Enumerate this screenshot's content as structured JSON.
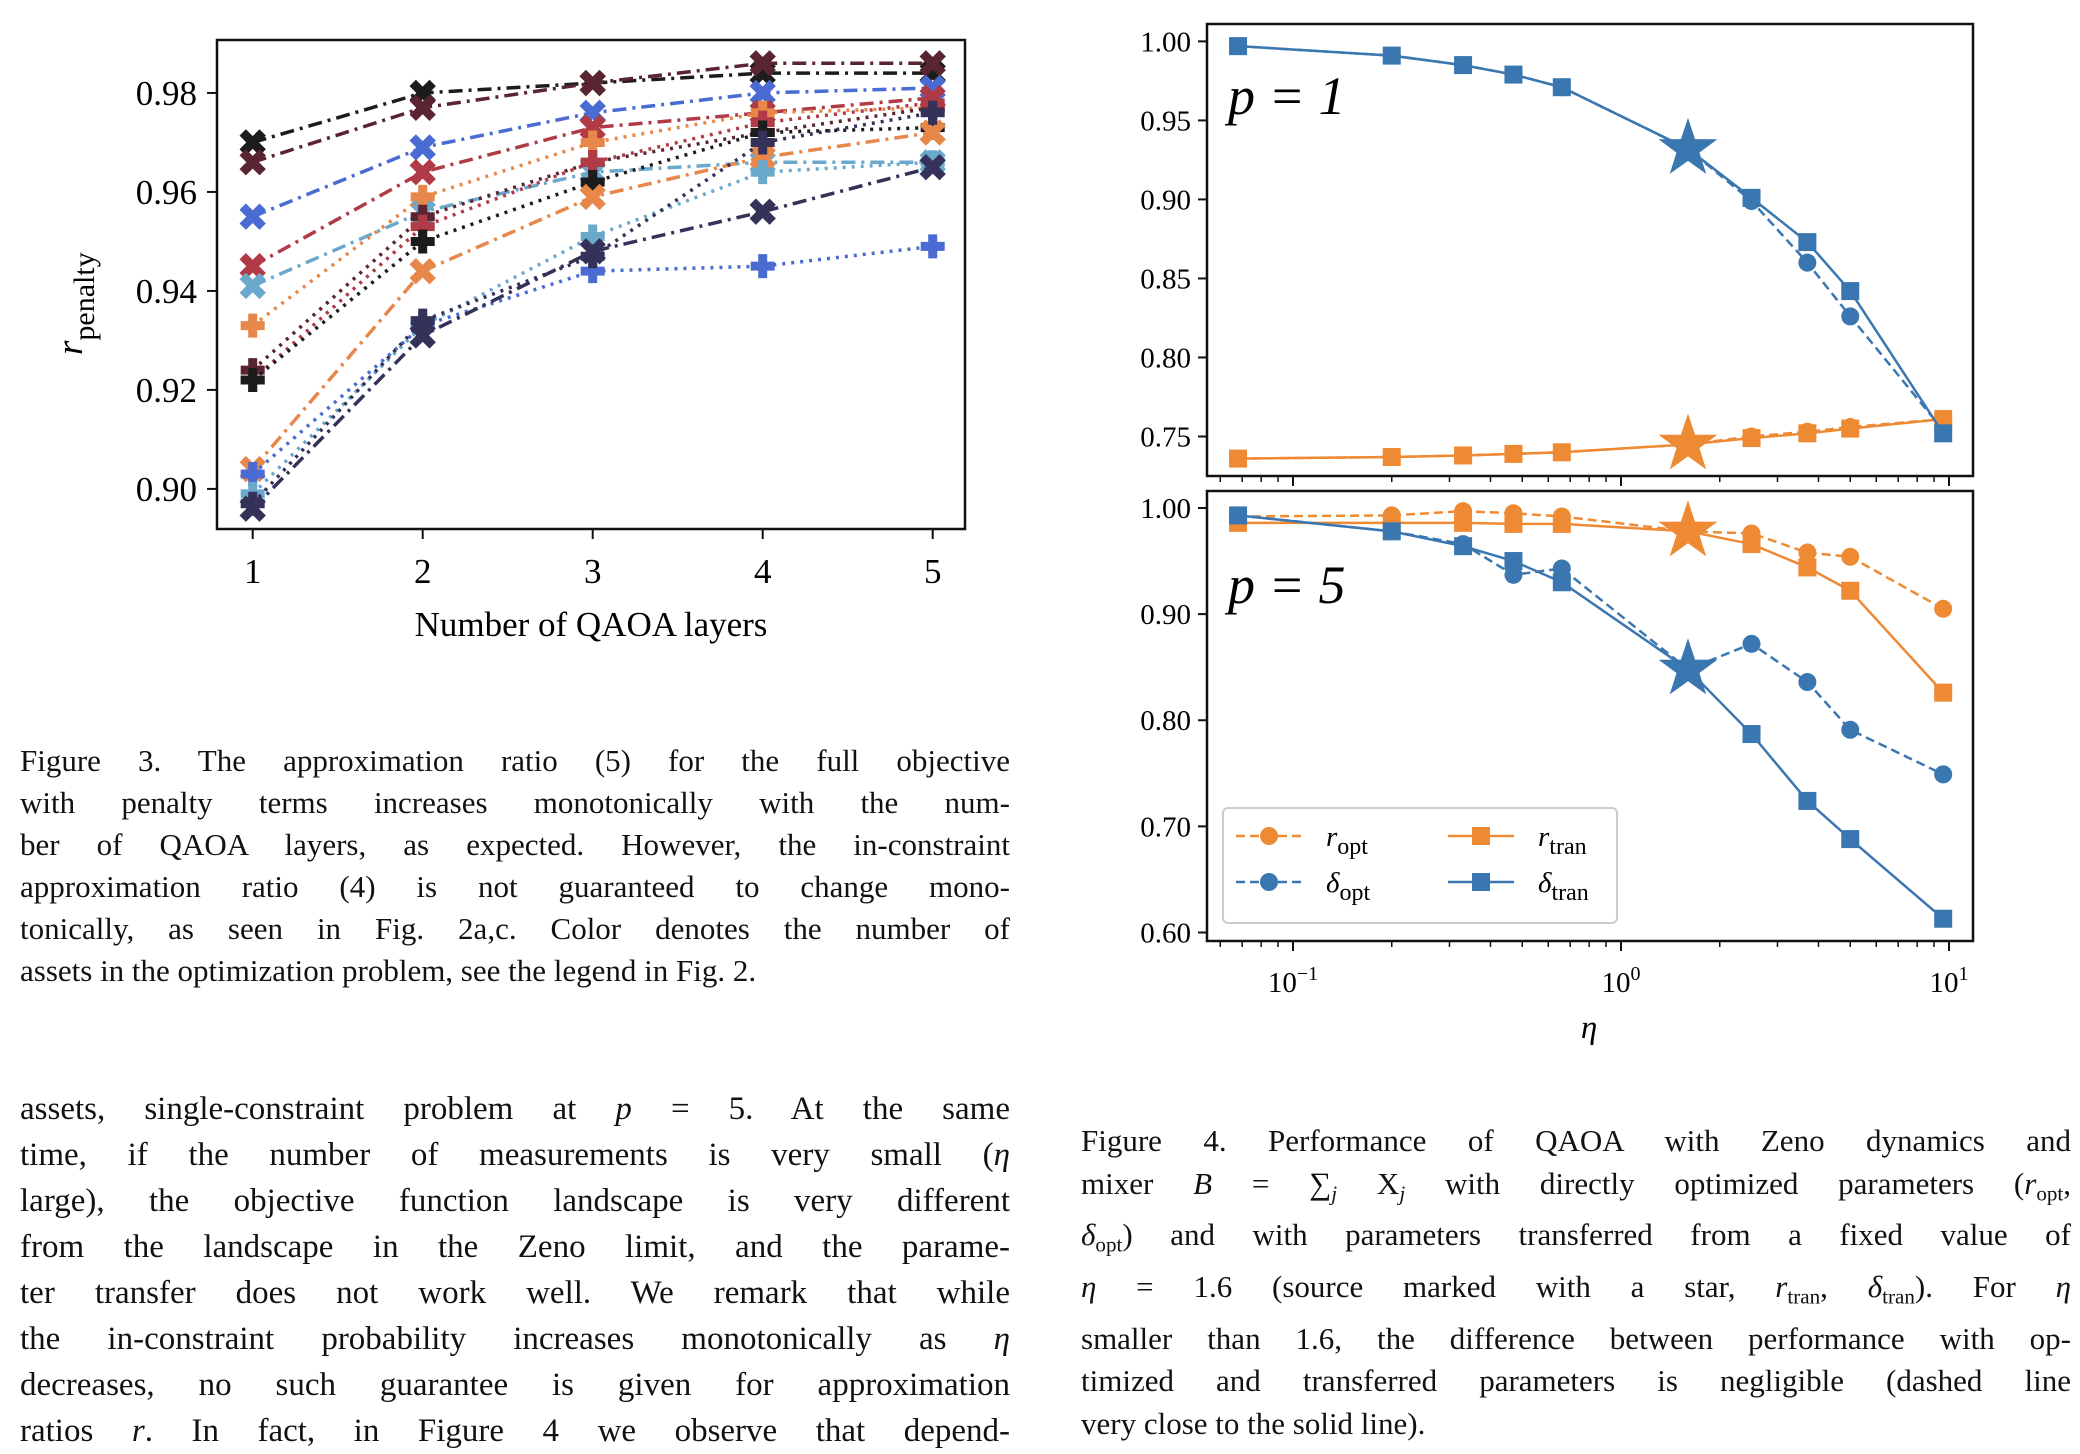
{
  "figure3": {
    "chart_data": {
      "type": "line",
      "xlabel": "Number of QAOA layers",
      "ylabel": {
        "symbol": "r",
        "sub": "penalty"
      },
      "x": [
        1,
        2,
        3,
        4,
        5
      ],
      "xticks": [
        "1",
        "2",
        "3",
        "4",
        "5"
      ],
      "yticks": [
        "0.90",
        "0.92",
        "0.94",
        "0.96",
        "0.98"
      ],
      "xlim": [
        0.79,
        5.19
      ],
      "ylim": [
        0.8919,
        0.9907
      ],
      "grid": false,
      "series": [
        {
          "color": "#1c1c1c",
          "style": "dashdot",
          "marker": "x",
          "values": [
            0.97,
            0.98,
            0.982,
            0.984,
            0.984
          ]
        },
        {
          "color": "#5a2430",
          "style": "dashdot",
          "marker": "x",
          "values": [
            0.966,
            0.977,
            0.982,
            0.986,
            0.986
          ]
        },
        {
          "color": "#4a6bd1",
          "style": "dashdot",
          "marker": "x",
          "values": [
            0.955,
            0.969,
            0.976,
            0.98,
            0.981
          ]
        },
        {
          "color": "#b03a45",
          "style": "dashdot",
          "marker": "x",
          "values": [
            0.945,
            0.964,
            0.973,
            0.976,
            0.979
          ]
        },
        {
          "color": "#6aa8cc",
          "style": "dashdot",
          "marker": "x",
          "values": [
            0.941,
            0.956,
            0.964,
            0.966,
            0.966
          ]
        },
        {
          "color": "#e8874a",
          "style": "dotted",
          "marker": "plus",
          "values": [
            0.933,
            0.959,
            0.97,
            0.976,
            0.977
          ]
        },
        {
          "color": "#5a2430",
          "style": "dotted",
          "marker": "plus",
          "values": [
            0.924,
            0.955,
            0.966,
            0.972,
            0.977
          ]
        },
        {
          "color": "#b03a45",
          "style": "dotted",
          "marker": "plus",
          "values": [
            0.922,
            0.953,
            0.966,
            0.974,
            0.978
          ]
        },
        {
          "color": "#1c1c1c",
          "style": "dotted",
          "marker": "plus",
          "values": [
            0.922,
            0.95,
            0.962,
            0.972,
            0.973
          ]
        },
        {
          "color": "#e8874a",
          "style": "dashdot",
          "marker": "x",
          "values": [
            0.904,
            0.944,
            0.959,
            0.967,
            0.972
          ]
        },
        {
          "color": "#4a6bd1",
          "style": "dotted",
          "marker": "plus",
          "values": [
            0.903,
            0.933,
            0.944,
            0.945,
            0.949
          ]
        },
        {
          "color": "#6aa8cc",
          "style": "dotted",
          "marker": "plus",
          "values": [
            0.899,
            0.933,
            0.951,
            0.964,
            0.966
          ]
        },
        {
          "color": "#35325a",
          "style": "dotted",
          "marker": "plus",
          "values": [
            0.897,
            0.934,
            0.947,
            0.97,
            0.976
          ]
        },
        {
          "color": "#35325a",
          "style": "dashdot",
          "marker": "x",
          "values": [
            0.896,
            0.931,
            0.948,
            0.956,
            0.965
          ]
        }
      ]
    },
    "caption": [
      [
        {
          "t": "Figure 3.  The approximation ratio (5) for the full objective"
        }
      ],
      [
        {
          "t": "with penalty terms increases monotonically with the num-"
        }
      ],
      [
        {
          "t": "ber of QAOA layers, as expected. However, the in-constraint"
        }
      ],
      [
        {
          "t": "approximation ratio (4) is not guaranteed to change mono-"
        }
      ],
      [
        {
          "t": "tonically, as seen in Fig. 2a,c.  Color denotes the number of"
        }
      ],
      [
        {
          "t": "assets in the optimization problem, see the legend in Fig. 2."
        }
      ]
    ]
  },
  "figure4": {
    "chart_data": {
      "type": "line",
      "xlabel": "η",
      "xscale": "log",
      "xlim": [
        0.055,
        11.8
      ],
      "xticks": [
        {
          "base": "10",
          "exp": "−1",
          "value": 0.1
        },
        {
          "base": "10",
          "exp": "0",
          "value": 1
        },
        {
          "base": "10",
          "exp": "1",
          "value": 10
        }
      ],
      "x": [
        0.068,
        0.2,
        0.33,
        0.47,
        0.66,
        1.6,
        2.5,
        3.7,
        5.0,
        9.6
      ],
      "source_eta": 1.6,
      "colors": {
        "r": "#ef8a34",
        "delta": "#3a76b0"
      },
      "legend": {
        "placement": "lower-left",
        "entries": [
          {
            "symbol": "r",
            "sub": "opt",
            "color": "#ef8a34",
            "style": "dashed",
            "marker": "circle"
          },
          {
            "symbol": "δ",
            "sub": "opt",
            "color": "#3a76b0",
            "style": "dashed",
            "marker": "circle"
          },
          {
            "symbol": "r",
            "sub": "tran",
            "color": "#ef8a34",
            "style": "solid",
            "marker": "square"
          },
          {
            "symbol": "δ",
            "sub": "tran",
            "color": "#3a76b0",
            "style": "solid",
            "marker": "square"
          }
        ]
      },
      "panels": [
        {
          "label": "p = 1",
          "ylim": [
            0.725,
            1.011
          ],
          "yticks": [
            "0.75",
            "0.80",
            "0.85",
            "0.90",
            "0.95",
            "1.00"
          ],
          "series": [
            {
              "key": "r_opt",
              "color": "#ef8a34",
              "style": "dashed",
              "marker": "circle",
              "values": [
                0.736,
                0.737,
                0.738,
                0.739,
                0.74,
                0.745,
                0.75,
                0.753,
                0.756,
                0.761
              ]
            },
            {
              "key": "delta_opt",
              "color": "#3a76b0",
              "style": "dashed",
              "marker": "circle",
              "values": [
                0.997,
                0.991,
                0.985,
                0.979,
                0.971,
                0.932,
                0.899,
                0.86,
                0.826,
                0.754
              ]
            },
            {
              "key": "r_tran",
              "color": "#ef8a34",
              "style": "solid",
              "marker": "square",
              "values": [
                0.736,
                0.737,
                0.738,
                0.739,
                0.74,
                0.745,
                0.749,
                0.752,
                0.755,
                0.761
              ]
            },
            {
              "key": "delta_tran",
              "color": "#3a76b0",
              "style": "solid",
              "marker": "square",
              "values": [
                0.997,
                0.991,
                0.985,
                0.979,
                0.971,
                0.932,
                0.901,
                0.873,
                0.842,
                0.752
              ]
            }
          ]
        },
        {
          "label": "p = 5",
          "ylim": [
            0.592,
            1.016
          ],
          "yticks": [
            "0.60",
            "0.70",
            "0.80",
            "0.90",
            "1.00"
          ],
          "series": [
            {
              "key": "r_opt",
              "color": "#ef8a34",
              "style": "dashed",
              "marker": "circle",
              "values": [
                0.992,
                0.993,
                0.997,
                0.995,
                0.992,
                0.978,
                0.976,
                0.958,
                0.954,
                0.905
              ]
            },
            {
              "key": "delta_opt",
              "color": "#3a76b0",
              "style": "dashed",
              "marker": "circle",
              "values": [
                0.993,
                0.978,
                0.966,
                0.937,
                0.943,
                0.848,
                0.872,
                0.836,
                0.791,
                0.749
              ]
            },
            {
              "key": "r_tran",
              "color": "#ef8a34",
              "style": "solid",
              "marker": "square",
              "values": [
                0.986,
                0.986,
                0.986,
                0.985,
                0.985,
                0.978,
                0.966,
                0.944,
                0.922,
                0.826
              ]
            },
            {
              "key": "delta_tran",
              "color": "#3a76b0",
              "style": "solid",
              "marker": "square",
              "values": [
                0.993,
                0.978,
                0.964,
                0.95,
                0.93,
                0.848,
                0.787,
                0.724,
                0.688,
                0.613
              ]
            }
          ]
        }
      ]
    },
    "caption": [
      [
        {
          "t": "Figure 4.  Performance of QAOA with Zeno dynamics and"
        }
      ],
      [
        {
          "t": "mixer "
        },
        {
          "t": "B",
          "s": "i"
        },
        {
          "t": " = ∑"
        },
        {
          "t": "j",
          "s": "isub"
        },
        {
          "t": " X"
        },
        {
          "t": "j",
          "s": "isub"
        },
        {
          "t": " with directly optimized parameters ("
        },
        {
          "t": "r",
          "s": "i"
        },
        {
          "t": "opt",
          "s": "sub"
        },
        {
          "t": ","
        }
      ],
      [
        {
          "t": "δ",
          "s": "i"
        },
        {
          "t": "opt",
          "s": "sub"
        },
        {
          "t": ") and with parameters transferred from a fixed value of"
        }
      ],
      [
        {
          "t": "η",
          "s": "i"
        },
        {
          "t": " = 1.6 (source marked with a star, "
        },
        {
          "t": "r",
          "s": "i"
        },
        {
          "t": "tran",
          "s": "sub"
        },
        {
          "t": ", "
        },
        {
          "t": "δ",
          "s": "i"
        },
        {
          "t": "tran",
          "s": "sub"
        },
        {
          "t": ").  For "
        },
        {
          "t": "η",
          "s": "i"
        }
      ],
      [
        {
          "t": "smaller than 1.6, the difference between performance with op-"
        }
      ],
      [
        {
          "t": "timized and transferred parameters is negligible (dashed line"
        }
      ],
      [
        {
          "t": "very close to the solid line)."
        }
      ]
    ]
  },
  "body_text": [
    [
      {
        "t": "assets, single-constraint problem at "
      },
      {
        "t": "p",
        "s": "i"
      },
      {
        "t": " = 5.  At the same"
      }
    ],
    [
      {
        "t": "time, if the number of measurements is very small ("
      },
      {
        "t": "η",
        "s": "i"
      }
    ],
    [
      {
        "t": "large), the objective function landscape is very different"
      }
    ],
    [
      {
        "t": "from the landscape in the Zeno limit, and the parame-"
      }
    ],
    [
      {
        "t": "ter transfer does not work well.  We remark that while"
      }
    ],
    [
      {
        "t": "the in-constraint probability increases monotonically as "
      },
      {
        "t": "η",
        "s": "i"
      }
    ],
    [
      {
        "t": "decreases, no such guarantee is given for approximation"
      }
    ],
    [
      {
        "t": "ratios "
      },
      {
        "t": "r",
        "s": "i"
      },
      {
        "t": ".  In fact, in Figure 4 we observe that depend-"
      }
    ]
  ]
}
